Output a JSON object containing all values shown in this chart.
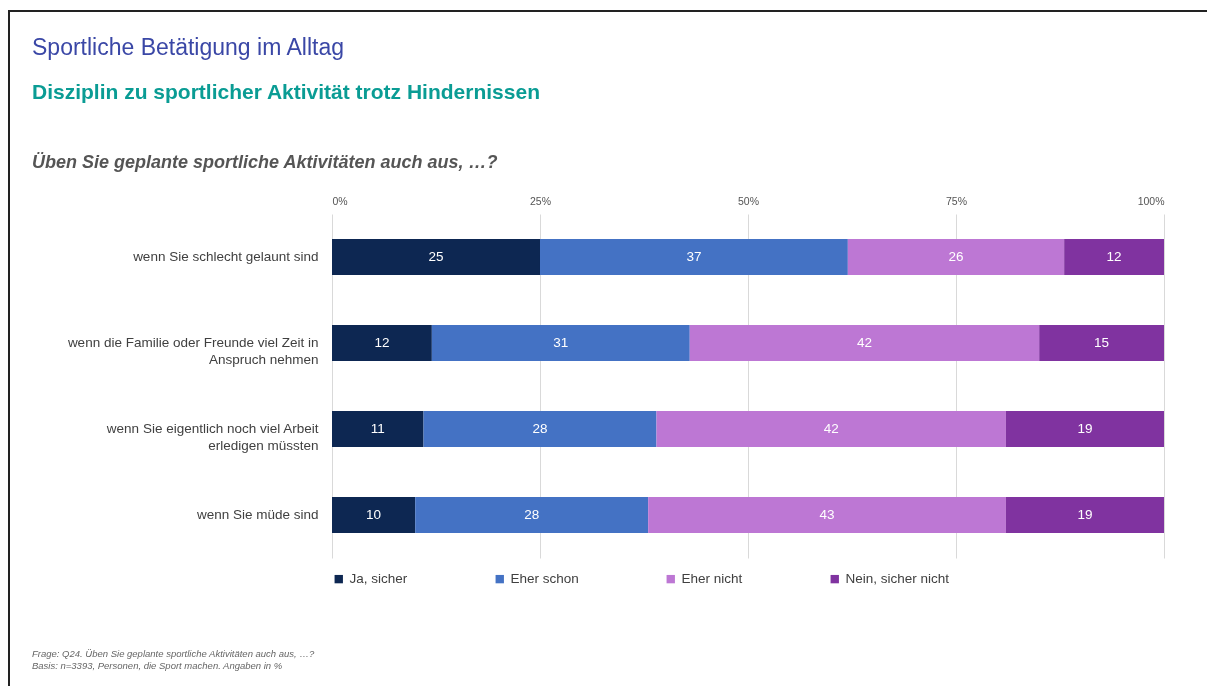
{
  "chart_data": {
    "type": "bar",
    "orientation": "horizontal",
    "stacked": true,
    "title": "Sportliche Betätigung im Alltag",
    "subtitle": "Disziplin zu sportlicher Aktivität trotz Hindernissen",
    "annotations": [
      "Üben Sie geplante sportliche Aktivitäten auch aus, …?",
      "Frage: Q24. Üben Sie geplante sportliche Aktivitäten auch aus, …?",
      "Basis: n=3393, Personen, die Sport machen. Angaben in %"
    ],
    "categories": [
      "wenn Sie schlecht gelaunt sind",
      "wenn die Familie oder Freunde viel Zeit in Anspruch nehmen",
      "wenn Sie eigentlich noch viel Arbeit erledigen müssten",
      "wenn Sie müde sind"
    ],
    "series": [
      {
        "name": "Ja, sicher",
        "color": "#0d2752",
        "values": [
          25,
          12,
          11,
          10
        ]
      },
      {
        "name": "Eher schon",
        "color": "#4472c4",
        "values": [
          37,
          31,
          28,
          28
        ]
      },
      {
        "name": "Eher nicht",
        "color": "#bd77d4",
        "values": [
          26,
          42,
          42,
          43
        ]
      },
      {
        "name": "Nein, sicher nicht",
        "color": "#8033a0",
        "values": [
          12,
          15,
          19,
          19
        ]
      }
    ],
    "xlim": [
      0,
      100
    ],
    "xticks": [
      {
        "value": 0,
        "label": "0%"
      },
      {
        "value": 25,
        "label": "25%"
      },
      {
        "value": 50,
        "label": "50%"
      },
      {
        "value": 75,
        "label": "75%"
      },
      {
        "value": 100,
        "label": "100%"
      }
    ],
    "grid": "x",
    "legend": "bottom",
    "data_labels": true
  }
}
